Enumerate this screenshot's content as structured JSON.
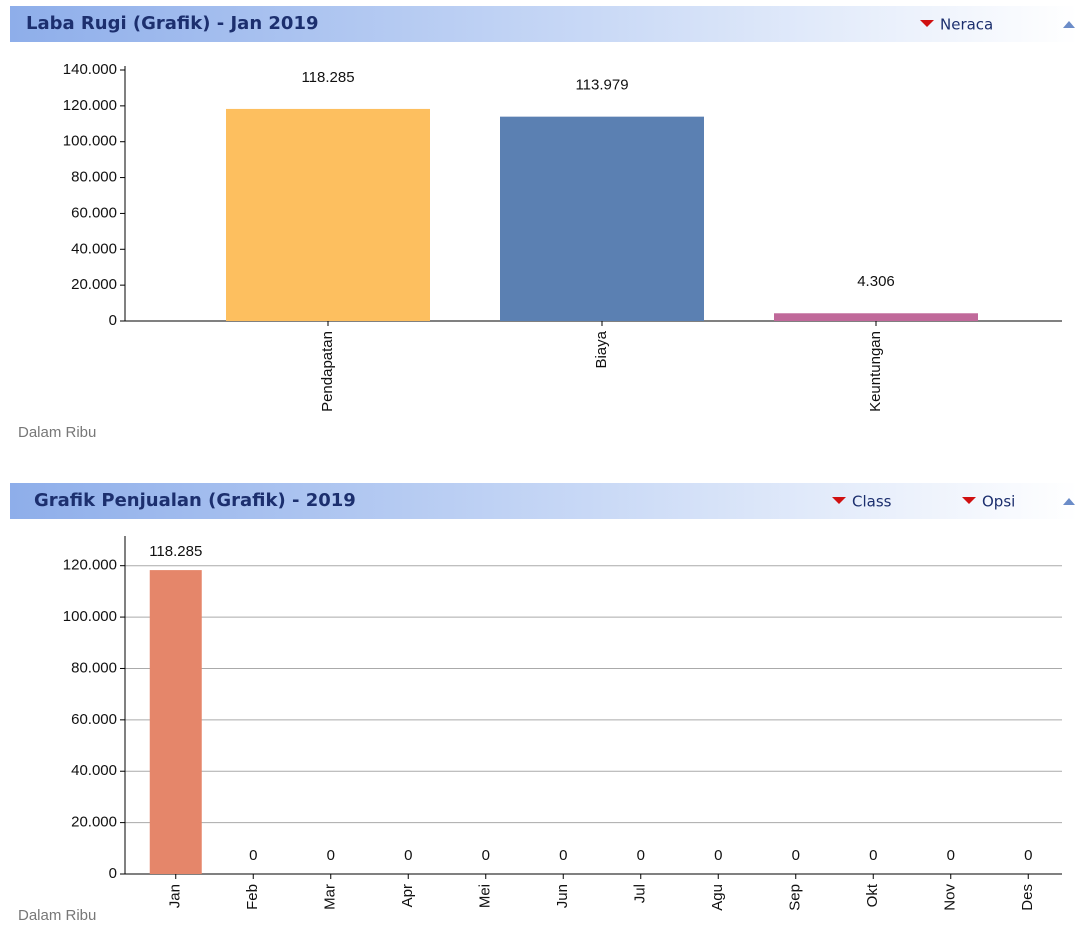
{
  "chart_data": [
    {
      "type": "bar",
      "title": "Laba Rugi (Grafik) - Jan 2019",
      "menus": [
        "Neraca"
      ],
      "y_label": "Dalam Ribu",
      "categories": [
        "Pendapatan",
        "Biaya",
        "Keuntungan"
      ],
      "values": [
        118285,
        113979,
        4306
      ],
      "value_labels": [
        "118.285",
        "113.979",
        "4.306"
      ],
      "colors": [
        "#fdbf5f",
        "#5b80b2",
        "#c0699a"
      ],
      "ylim": [
        0,
        140000
      ],
      "yticks": [
        0,
        {
          "value": 20000,
          "label": "20.000"
        },
        {
          "value": 40000,
          "label": "40.000"
        },
        {
          "value": 60000,
          "label": "60.000"
        },
        {
          "value": 80000,
          "label": "80.000"
        },
        {
          "value": 100000,
          "label": "100.000"
        },
        {
          "value": 120000,
          "label": "120.000"
        },
        {
          "value": 140000,
          "label": "140.000"
        }
      ],
      "grid": false
    },
    {
      "type": "bar",
      "title": "Grafik Penjualan (Grafik) - 2019",
      "menus": [
        "Class",
        "Opsi"
      ],
      "y_label": "Dalam Ribu",
      "categories": [
        "Jan",
        "Feb",
        "Mar",
        "Apr",
        "Mei",
        "Jun",
        "Jul",
        "Agu",
        "Sep",
        "Okt",
        "Nov",
        "Des"
      ],
      "values": [
        118285,
        0,
        0,
        0,
        0,
        0,
        0,
        0,
        0,
        0,
        0,
        0
      ],
      "value_labels": [
        "118.285",
        "0",
        "0",
        "0",
        "0",
        "0",
        "0",
        "0",
        "0",
        "0",
        "0",
        "0"
      ],
      "color": "#e5866a",
      "ylim": [
        0,
        130000
      ],
      "yticks": [
        0,
        {
          "value": 20000,
          "label": "20.000"
        },
        {
          "value": 40000,
          "label": "40.000"
        },
        {
          "value": 60000,
          "label": "60.000"
        },
        {
          "value": 80000,
          "label": "80.000"
        },
        {
          "value": 100000,
          "label": "100.000"
        },
        {
          "value": 120000,
          "label": "120.000"
        }
      ],
      "grid": true
    }
  ]
}
